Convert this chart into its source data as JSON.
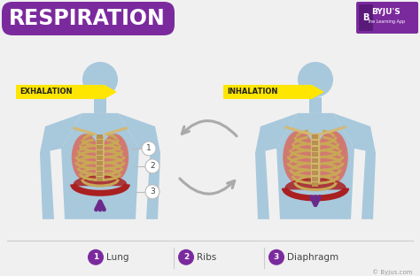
{
  "title": "RESPIRATION",
  "title_bg_color": "#7B2A9E",
  "title_text_color": "#FFFFFF",
  "bg_color": "#F0F0F0",
  "label_exhalation": "EXHALATION",
  "label_inhalation": "INHALATION",
  "label_bg": "#FFE600",
  "legend": [
    {
      "num": "1",
      "label": "Lung"
    },
    {
      "num": "2",
      "label": "Ribs"
    },
    {
      "num": "3",
      "label": "Diaphragm"
    }
  ],
  "legend_circle_color": "#7B2A9E",
  "legend_text_color": "#444444",
  "copyright": "© Byjus.com",
  "byju_text_color": "#999999",
  "body_fill": "#A8C8DC",
  "lung_fill": "#D4756A",
  "rib_fill": "#C8A855",
  "spine_fill": "#D4B870",
  "diaphragm_fill": "#AA2020",
  "arrow_color": "#6B2A8B",
  "cycle_arrow_color": "#AAAAAA",
  "separator_color": "#CCCCCC",
  "byju_logo_color": "#7B2A9E",
  "byju_icon_color": "#5A1A7A"
}
